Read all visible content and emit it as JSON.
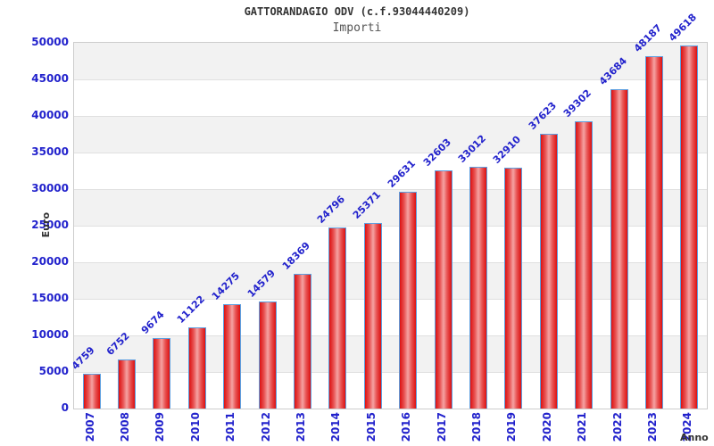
{
  "header": {
    "title": "GATTORANDAGIO ODV (c.f.93044440209)",
    "subtitle": "Importi"
  },
  "chart_data": {
    "type": "bar",
    "title": "GATTORANDAGIO ODV (c.f.93044440209)",
    "subtitle": "Importi",
    "xlabel": "Anno",
    "ylabel": "Euro",
    "categories": [
      "2007",
      "2008",
      "2009",
      "2010",
      "2011",
      "2012",
      "2013",
      "2014",
      "2015",
      "2016",
      "2017",
      "2018",
      "2019",
      "2020",
      "2021",
      "2022",
      "2023",
      "2024"
    ],
    "values": [
      4759,
      6752,
      9674,
      11122,
      14275,
      14579,
      18369,
      24796,
      25371,
      29631,
      32603,
      33012,
      32910,
      37623,
      39302,
      43684,
      48187,
      49618
    ],
    "ylim": [
      0,
      50000
    ],
    "ytick_step": 5000,
    "legend": "none",
    "grid": "horizontal-bands-alternating",
    "colors": {
      "bar_edge": "#dd1111",
      "bar_center": "#f5a3a3",
      "bar_border": "#5d9fe0",
      "tick_label": "#2222cc",
      "band_gray": "#f2f2f2",
      "band_white": "#ffffff",
      "gridline": "#e0e0e0",
      "plot_border": "#cccccc",
      "title": "#333333",
      "subtitle": "#555555"
    }
  }
}
